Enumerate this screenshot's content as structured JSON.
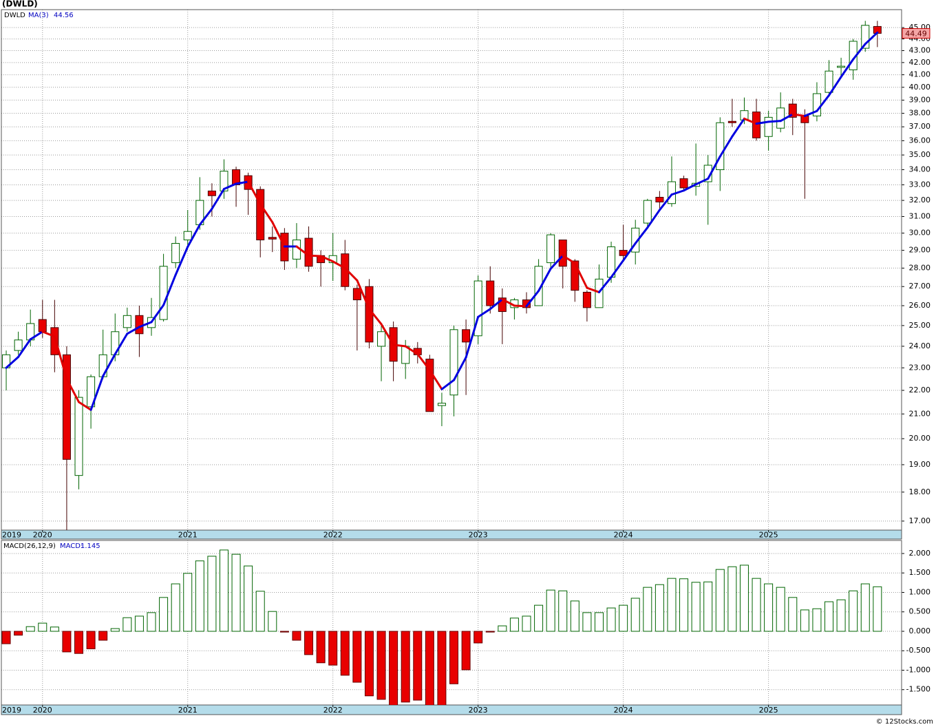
{
  "title": "(DWLD)",
  "footer": "© 12Stocks.com",
  "chart_data": [
    {
      "type": "candlestick",
      "symbol": "DWLD",
      "open": [
        23.0,
        23.8,
        24.3,
        25.3,
        24.9,
        23.6,
        18.6,
        21.3,
        22.6,
        23.6,
        24.9,
        25.5,
        24.9,
        25.3,
        28.3,
        29.6,
        30.5,
        32.6,
        32.6,
        34.0,
        33.6,
        32.7,
        29.75,
        30.0,
        28.5,
        29.7,
        28.7,
        28.3,
        28.8,
        26.9,
        27.0,
        24.0,
        24.9,
        23.2,
        23.9,
        23.4,
        21.35,
        21.8,
        24.8,
        24.5,
        27.3,
        26.4,
        25.9,
        26.3,
        26.0,
        28.3,
        29.6,
        28.4,
        26.7,
        25.9,
        27.5,
        29.0,
        28.9,
        30.6,
        32.2,
        31.8,
        33.4,
        32.9,
        33.2,
        34.0,
        37.4,
        37.5,
        38.1,
        36.3,
        36.9,
        38.7,
        37.8,
        37.8,
        39.6,
        41.6,
        41.4,
        43.2,
        45.1
      ],
      "high": [
        23.8,
        24.7,
        25.8,
        26.3,
        26.3,
        24.0,
        22.0,
        22.7,
        24.8,
        25.6,
        25.9,
        26.0,
        26.4,
        28.8,
        29.8,
        31.4,
        33.5,
        33.1,
        34.7,
        34.2,
        33.8,
        32.9,
        30.4,
        30.3,
        30.6,
        30.4,
        29.0,
        30.0,
        29.6,
        27.1,
        27.4,
        25.0,
        25.2,
        24.3,
        24.2,
        23.6,
        21.9,
        25.0,
        25.3,
        27.6,
        28.1,
        26.9,
        26.4,
        26.7,
        28.5,
        30.0,
        29.6,
        28.5,
        26.8,
        28.2,
        29.5,
        30.5,
        30.8,
        32.1,
        32.6,
        34.9,
        33.6,
        35.8,
        35.0,
        37.7,
        39.1,
        39.2,
        39.1,
        38.2,
        39.6,
        39.1,
        38.3,
        40.4,
        42.2,
        42.4,
        44.0,
        45.6,
        45.6
      ],
      "low": [
        22.0,
        23.6,
        24.0,
        24.4,
        22.8,
        16.6,
        18.1,
        20.4,
        22.5,
        23.3,
        24.7,
        23.5,
        24.5,
        25.2,
        28.0,
        29.3,
        30.2,
        31.0,
        32.1,
        31.6,
        31.1,
        28.6,
        28.9,
        27.9,
        28.0,
        27.8,
        27.0,
        27.3,
        26.8,
        23.8,
        23.9,
        22.4,
        22.4,
        22.5,
        23.2,
        21.1,
        20.5,
        20.9,
        21.8,
        24.1,
        25.6,
        24.1,
        25.3,
        25.6,
        26.0,
        28.0,
        26.9,
        26.2,
        25.2,
        25.9,
        27.2,
        28.4,
        28.2,
        30.4,
        31.5,
        31.6,
        32.6,
        32.3,
        30.5,
        32.6,
        37.0,
        37.2,
        36.0,
        35.3,
        36.6,
        36.4,
        32.1,
        37.4,
        39.5,
        40.9,
        40.6,
        42.9,
        43.3
      ],
      "close": [
        23.6,
        24.3,
        25.1,
        24.7,
        23.6,
        19.2,
        21.7,
        22.6,
        23.6,
        24.7,
        25.5,
        24.6,
        25.4,
        28.1,
        29.4,
        30.1,
        32.0,
        32.3,
        33.9,
        33.0,
        32.7,
        29.6,
        29.65,
        28.4,
        29.6,
        28.1,
        28.3,
        28.7,
        27.0,
        26.3,
        24.2,
        24.7,
        23.3,
        24.0,
        23.6,
        21.1,
        21.45,
        24.8,
        24.2,
        27.3,
        26.0,
        25.7,
        26.3,
        25.9,
        28.1,
        29.9,
        28.1,
        26.8,
        25.9,
        27.4,
        29.2,
        28.7,
        30.3,
        32.0,
        31.9,
        33.2,
        32.8,
        33.1,
        34.3,
        37.3,
        37.3,
        38.2,
        36.2,
        37.7,
        38.4,
        37.7,
        37.3,
        39.5,
        41.3,
        41.7,
        43.8,
        45.2,
        44.49
      ],
      "ma": {
        "name": "MA(3)",
        "up_color": "#0000e0",
        "down_color": "#e00000",
        "values": [
          23.0,
          23.5,
          24.33,
          24.7,
          24.47,
          22.5,
          21.5,
          21.17,
          22.63,
          23.63,
          24.6,
          24.93,
          25.17,
          26.03,
          27.63,
          29.2,
          30.5,
          31.47,
          32.73,
          33.07,
          33.2,
          31.77,
          30.65,
          29.22,
          29.22,
          28.7,
          28.67,
          28.37,
          28.0,
          27.33,
          25.83,
          25.07,
          24.07,
          24.0,
          23.63,
          22.9,
          22.05,
          22.45,
          23.48,
          25.43,
          25.83,
          26.33,
          26.0,
          25.97,
          26.77,
          27.97,
          28.7,
          28.27,
          26.93,
          26.7,
          27.5,
          28.43,
          29.4,
          30.33,
          31.4,
          32.37,
          32.63,
          33.03,
          33.4,
          34.9,
          36.3,
          37.6,
          37.23,
          37.37,
          37.43,
          37.93,
          37.8,
          38.17,
          39.37,
          40.83,
          42.27,
          43.57,
          44.56
        ]
      },
      "up_color": "#006400",
      "down_color": "#e80000",
      "log": true,
      "grid": true,
      "ylim": [
        16.7,
        46.62
      ],
      "yticks": [
        {
          "value": 17,
          "label": "17.00"
        },
        {
          "value": 18,
          "label": "18.00"
        },
        {
          "value": 19,
          "label": "19.00"
        },
        {
          "value": 20,
          "label": "20.00"
        },
        {
          "value": 21,
          "label": "21.00"
        },
        {
          "value": 22,
          "label": "22.00"
        },
        {
          "value": 23,
          "label": "23.00"
        },
        {
          "value": 24,
          "label": "24.00"
        },
        {
          "value": 25,
          "label": "25.00"
        },
        {
          "value": 26,
          "label": "26.00"
        },
        {
          "value": 27,
          "label": "27.00"
        },
        {
          "value": 28,
          "label": "28.00"
        },
        {
          "value": 29,
          "label": "29.00"
        },
        {
          "value": 30,
          "label": "30.00"
        },
        {
          "value": 31,
          "label": "31.00"
        },
        {
          "value": 32,
          "label": "32.00"
        },
        {
          "value": 33,
          "label": "33.00"
        },
        {
          "value": 34,
          "label": "34.00"
        },
        {
          "value": 35,
          "label": "35.00"
        },
        {
          "value": 36,
          "label": "36.00"
        },
        {
          "value": 37,
          "label": "37.00"
        },
        {
          "value": 38,
          "label": "38.00"
        },
        {
          "value": 39,
          "label": "39.00"
        },
        {
          "value": 40,
          "label": "40.00"
        },
        {
          "value": 41,
          "label": "41.00"
        },
        {
          "value": 42,
          "label": "42.00"
        },
        {
          "value": 43,
          "label": "43.00"
        },
        {
          "value": 44,
          "label": "44.00"
        },
        {
          "value": 45,
          "label": "45.00"
        }
      ],
      "xlim": [
        -0.4,
        74
      ],
      "xticks": [
        {
          "value": -0.4,
          "label": "2019"
        },
        {
          "value": 3,
          "label": "2020"
        },
        {
          "value": 15,
          "label": "2021"
        },
        {
          "value": 27,
          "label": "2022"
        },
        {
          "value": 39,
          "label": "2023"
        },
        {
          "value": 51,
          "label": "2024"
        },
        {
          "value": 63,
          "label": "2025"
        }
      ]
    },
    {
      "type": "bar",
      "name": "MACD(26,12,9)",
      "value_name": "MACD:",
      "values": [
        -0.32,
        -0.1,
        0.12,
        0.21,
        0.11,
        -0.53,
        -0.57,
        -0.45,
        -0.23,
        0.07,
        0.35,
        0.39,
        0.48,
        0.87,
        1.22,
        1.49,
        1.81,
        1.93,
        2.09,
        1.98,
        1.68,
        1.03,
        0.51,
        -0.02,
        -0.23,
        -0.6,
        -0.81,
        -0.87,
        -1.13,
        -1.31,
        -1.66,
        -1.75,
        -1.9,
        -1.82,
        -1.77,
        -1.9,
        -1.9,
        -1.35,
        -0.99,
        -0.3,
        -0.02,
        0.14,
        0.34,
        0.39,
        0.67,
        1.06,
        1.04,
        0.78,
        0.48,
        0.48,
        0.6,
        0.67,
        0.85,
        1.13,
        1.2,
        1.36,
        1.35,
        1.26,
        1.27,
        1.59,
        1.66,
        1.7,
        1.36,
        1.22,
        1.13,
        0.87,
        0.55,
        0.58,
        0.76,
        0.81,
        1.04,
        1.22,
        1.145
      ],
      "positive_color": "#006400",
      "negative_color": "#e80000",
      "grid": true,
      "ylim": [
        -1.894,
        2.336
      ],
      "yticks": [
        {
          "value": -1.5,
          "label": "-1.500"
        },
        {
          "value": -1,
          "label": "-1.000"
        },
        {
          "value": -0.5,
          "label": "-0.500"
        },
        {
          "value": 0,
          "label": "0.000"
        },
        {
          "value": 0.5,
          "label": "0.500"
        },
        {
          "value": 1,
          "label": "1.000"
        },
        {
          "value": 1.5,
          "label": "1.500"
        },
        {
          "value": 2,
          "label": "2.000"
        }
      ],
      "xlim": [
        -0.4,
        74
      ],
      "xticks": [
        {
          "value": -0.4,
          "label": "2019"
        },
        {
          "value": 3,
          "label": "2020"
        },
        {
          "value": 15,
          "label": "2021"
        },
        {
          "value": 27,
          "label": "2022"
        },
        {
          "value": 39,
          "label": "2023"
        },
        {
          "value": 51,
          "label": "2024"
        },
        {
          "value": 63,
          "label": "2025"
        }
      ]
    }
  ]
}
